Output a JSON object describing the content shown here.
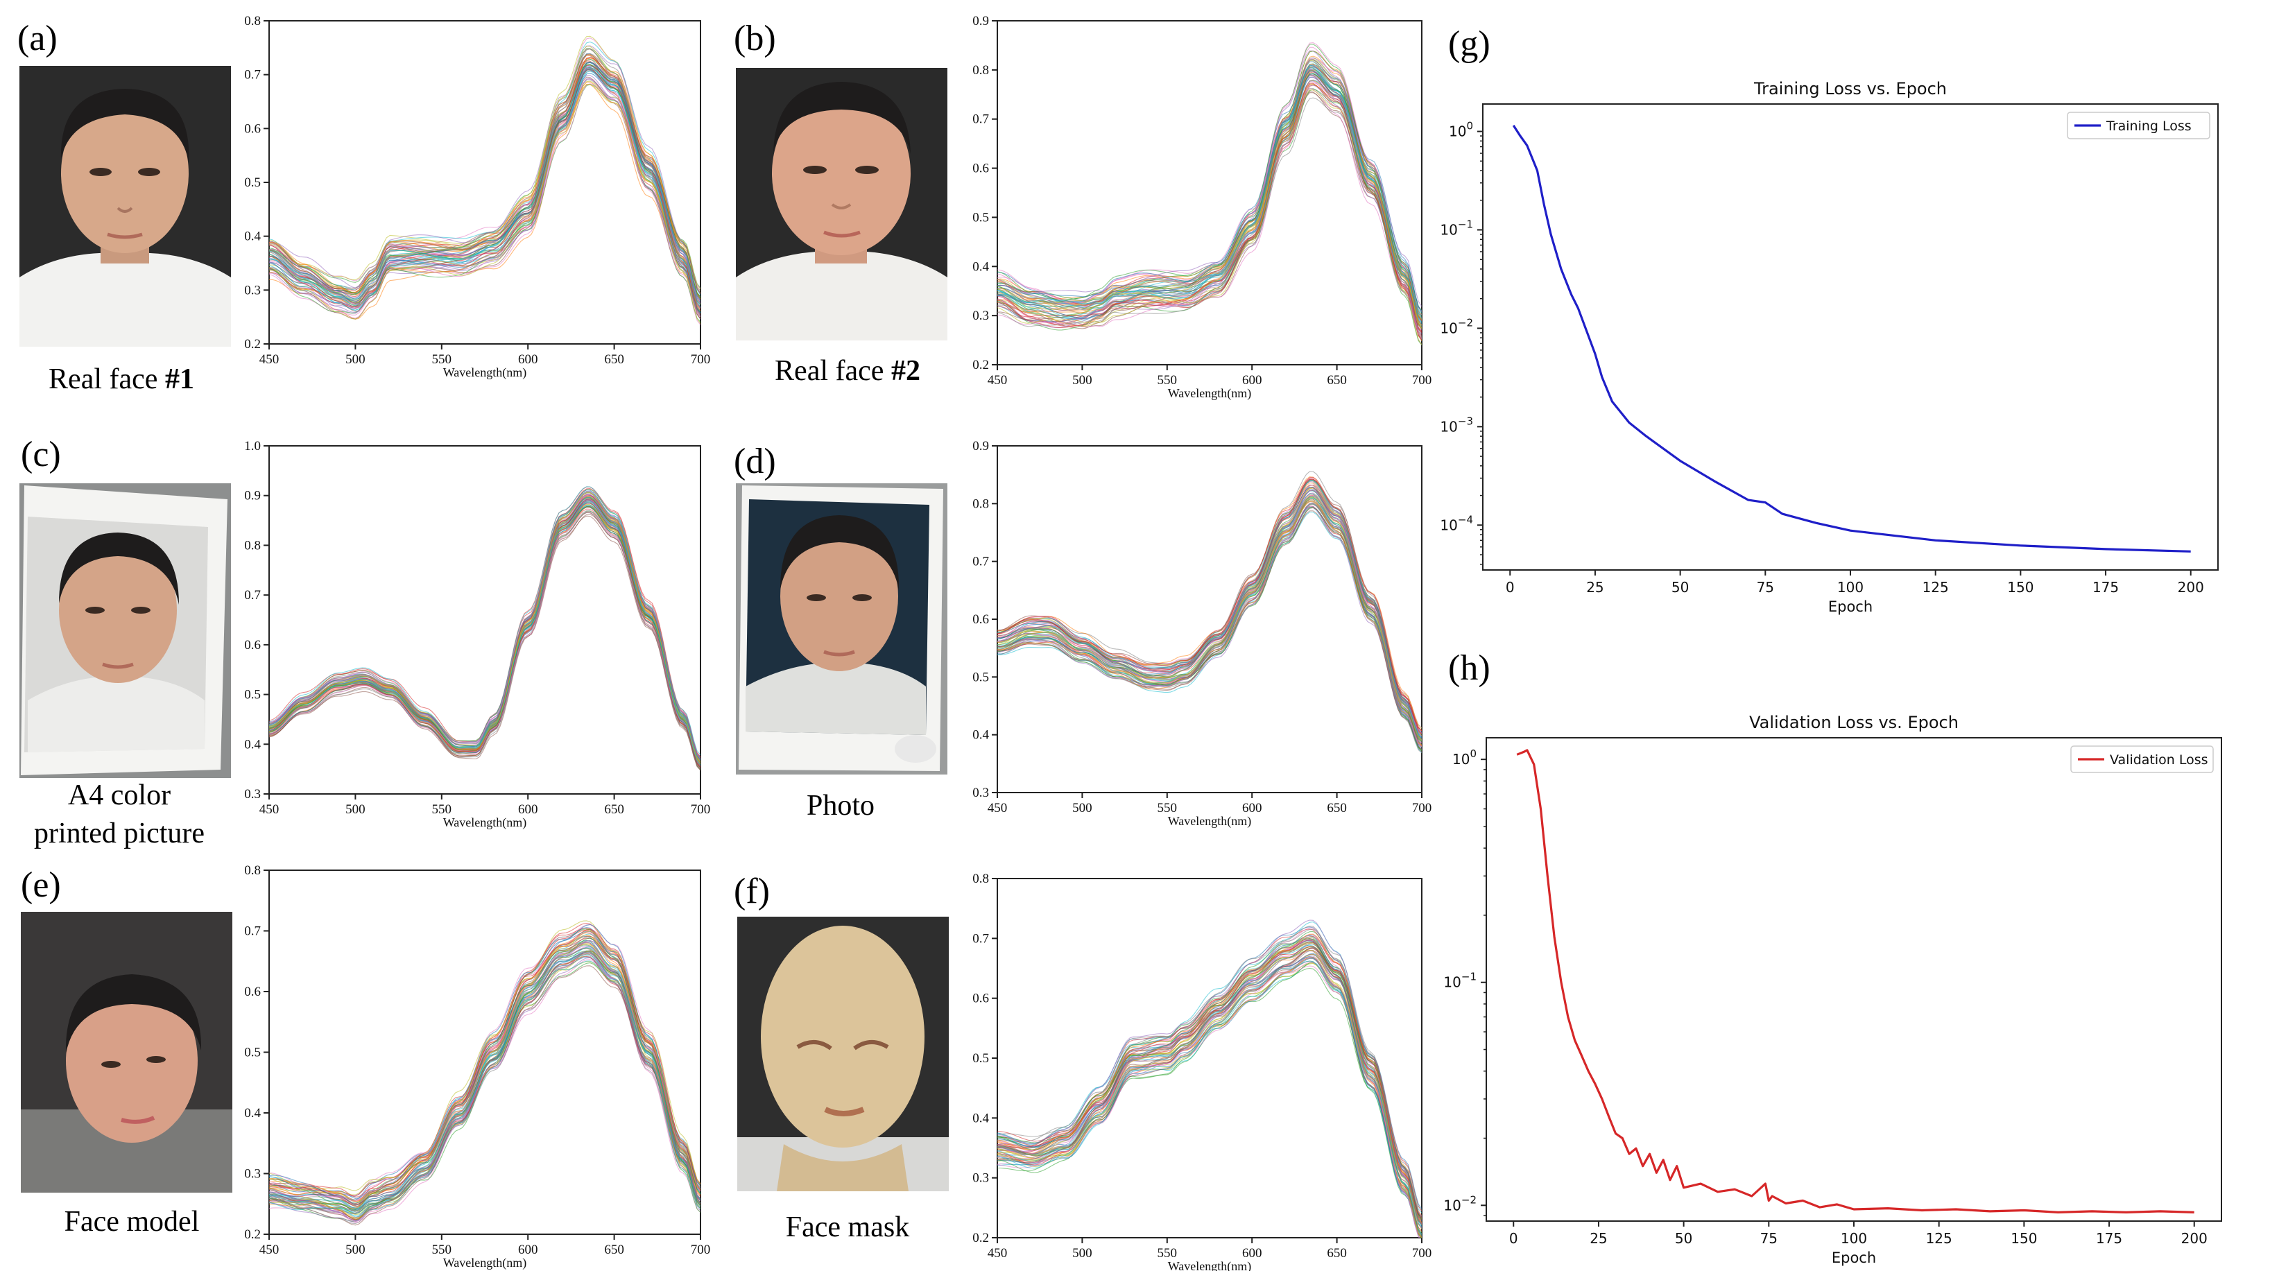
{
  "panels": {
    "a": {
      "tag": "(a)",
      "caption_main": "Real face ",
      "caption_bold": "#1"
    },
    "b": {
      "tag": "(b)",
      "caption_main": "Real face ",
      "caption_bold": "#2"
    },
    "c": {
      "tag": "(c)",
      "caption_line1": "A4 color",
      "caption_line2": "printed picture"
    },
    "d": {
      "tag": "(d)",
      "caption_line1": "Photo"
    },
    "e": {
      "tag": "(e)",
      "caption_line1": "Face model"
    },
    "f": {
      "tag": "(f)",
      "caption_line1": "Face mask"
    },
    "g": {
      "tag": "(g)"
    },
    "h": {
      "tag": "(h)"
    }
  },
  "colors": {
    "spectra_palette": [
      "#1f77b4",
      "#ff7f0e",
      "#2ca02c",
      "#d62728",
      "#9467bd",
      "#8c564b",
      "#e377c2",
      "#7f7f7f",
      "#bcbd22",
      "#17becf"
    ],
    "training_line": "#1f1fc8",
    "validation_line": "#d62728",
    "skin": "#d7a88a",
    "hair": "#1e1c1c",
    "shirt": "#f2f2f0",
    "background_dark": "#2a2a2a",
    "mask": "#dcc49a"
  },
  "chart_data": [
    {
      "id": "spectra-a",
      "type": "line",
      "xlabel": "Wavelength(nm)",
      "ylabel": "",
      "xlim": [
        450,
        700
      ],
      "ylim": [
        0.2,
        0.8
      ],
      "xticks": [
        450,
        500,
        550,
        600,
        650,
        700
      ],
      "yticks": [
        0.2,
        0.3,
        0.4,
        0.5,
        0.6,
        0.7,
        0.8
      ],
      "x": [
        450,
        470,
        490,
        500,
        510,
        520,
        540,
        560,
        580,
        600,
        620,
        635,
        650,
        670,
        690,
        700
      ],
      "mean": [
        0.36,
        0.32,
        0.29,
        0.28,
        0.31,
        0.36,
        0.36,
        0.36,
        0.38,
        0.44,
        0.62,
        0.72,
        0.68,
        0.52,
        0.36,
        0.27
      ],
      "spread": 0.025,
      "curve_count": 60
    },
    {
      "id": "spectra-b",
      "type": "line",
      "xlabel": "Wavelength(nm)",
      "ylabel": "",
      "xlim": [
        450,
        700
      ],
      "ylim": [
        0.2,
        0.9
      ],
      "xticks": [
        450,
        500,
        550,
        600,
        650,
        700
      ],
      "yticks": [
        0.2,
        0.3,
        0.4,
        0.5,
        0.6,
        0.7,
        0.8,
        0.9
      ],
      "x": [
        450,
        470,
        490,
        500,
        510,
        520,
        540,
        560,
        580,
        600,
        620,
        635,
        650,
        670,
        690,
        700
      ],
      "mean": [
        0.35,
        0.32,
        0.31,
        0.31,
        0.32,
        0.34,
        0.35,
        0.35,
        0.38,
        0.48,
        0.68,
        0.8,
        0.76,
        0.58,
        0.38,
        0.28
      ],
      "spread": 0.03,
      "curve_count": 60
    },
    {
      "id": "spectra-c",
      "type": "line",
      "xlabel": "Wavelength(nm)",
      "ylabel": "",
      "xlim": [
        450,
        700
      ],
      "ylim": [
        0.3,
        1.0
      ],
      "xticks": [
        450,
        500,
        550,
        600,
        650,
        700
      ],
      "yticks": [
        0.3,
        0.4,
        0.5,
        0.6,
        0.7,
        0.8,
        0.9,
        1.0
      ],
      "x": [
        450,
        470,
        490,
        505,
        520,
        540,
        560,
        570,
        580,
        600,
        620,
        635,
        650,
        670,
        690,
        700
      ],
      "mean": [
        0.43,
        0.48,
        0.52,
        0.53,
        0.51,
        0.45,
        0.39,
        0.39,
        0.44,
        0.64,
        0.84,
        0.89,
        0.84,
        0.66,
        0.45,
        0.36
      ],
      "spread": 0.01,
      "curve_count": 60
    },
    {
      "id": "spectra-d",
      "type": "line",
      "xlabel": "Wavelength(nm)",
      "ylabel": "",
      "xlim": [
        450,
        700
      ],
      "ylim": [
        0.3,
        0.9
      ],
      "xticks": [
        450,
        500,
        550,
        600,
        650,
        700
      ],
      "yticks": [
        0.3,
        0.4,
        0.5,
        0.6,
        0.7,
        0.8,
        0.9
      ],
      "x": [
        450,
        470,
        480,
        500,
        520,
        540,
        550,
        560,
        580,
        600,
        620,
        635,
        650,
        670,
        690,
        700
      ],
      "mean": [
        0.56,
        0.58,
        0.58,
        0.55,
        0.52,
        0.5,
        0.5,
        0.51,
        0.56,
        0.65,
        0.76,
        0.82,
        0.77,
        0.62,
        0.45,
        0.39
      ],
      "spread": 0.015,
      "curve_count": 60
    },
    {
      "id": "spectra-e",
      "type": "line",
      "xlabel": "Wavelength(nm)",
      "ylabel": "",
      "xlim": [
        450,
        700
      ],
      "ylim": [
        0.2,
        0.8
      ],
      "xticks": [
        450,
        500,
        550,
        600,
        650,
        700
      ],
      "yticks": [
        0.2,
        0.3,
        0.4,
        0.5,
        0.6,
        0.7,
        0.8
      ],
      "x": [
        450,
        470,
        490,
        500,
        510,
        520,
        540,
        560,
        580,
        600,
        620,
        635,
        650,
        670,
        690,
        700
      ],
      "mean": [
        0.27,
        0.26,
        0.25,
        0.24,
        0.26,
        0.27,
        0.31,
        0.4,
        0.5,
        0.6,
        0.66,
        0.68,
        0.64,
        0.5,
        0.33,
        0.26
      ],
      "spread": 0.02,
      "curve_count": 60
    },
    {
      "id": "spectra-f",
      "type": "line",
      "xlabel": "Wavelength(nm)",
      "ylabel": "",
      "xlim": [
        450,
        700
      ],
      "ylim": [
        0.2,
        0.8
      ],
      "xticks": [
        450,
        500,
        550,
        600,
        650,
        700
      ],
      "yticks": [
        0.2,
        0.3,
        0.4,
        0.5,
        0.6,
        0.7,
        0.8
      ],
      "x": [
        450,
        470,
        490,
        510,
        530,
        550,
        560,
        580,
        600,
        620,
        635,
        650,
        670,
        690,
        700
      ],
      "mean": [
        0.35,
        0.34,
        0.36,
        0.42,
        0.5,
        0.51,
        0.53,
        0.58,
        0.63,
        0.67,
        0.69,
        0.64,
        0.48,
        0.3,
        0.22
      ],
      "spread": 0.02,
      "curve_count": 60
    },
    {
      "id": "training-loss",
      "type": "line",
      "title": "Training Loss vs. Epoch",
      "xlabel": "Epoch",
      "ylabel": "",
      "xlim": [
        -8,
        208
      ],
      "ylim": [
        3.5e-05,
        1.9
      ],
      "yscale": "log",
      "xticks": [
        0,
        25,
        50,
        75,
        100,
        125,
        150,
        175,
        200
      ],
      "yticks": [
        1,
        0.1,
        0.01,
        0.001,
        0.0001
      ],
      "ytick_labels": [
        "10^0",
        "10^-1",
        "10^-2",
        "10^-3",
        "10^-4"
      ],
      "legend_position": "top-right",
      "series": [
        {
          "name": "Training Loss",
          "x": [
            1,
            3,
            5,
            8,
            10,
            12,
            15,
            18,
            20,
            25,
            27,
            30,
            35,
            40,
            50,
            60,
            70,
            75,
            80,
            90,
            100,
            125,
            150,
            175,
            200
          ],
          "y": [
            1.15,
            0.9,
            0.72,
            0.4,
            0.18,
            0.09,
            0.04,
            0.022,
            0.016,
            0.0055,
            0.0032,
            0.0018,
            0.0011,
            0.0008,
            0.00045,
            0.00028,
            0.00018,
            0.00017,
            0.00013,
            0.000105,
            8.8e-05,
            7e-05,
            6.2e-05,
            5.7e-05,
            5.4e-05
          ]
        }
      ]
    },
    {
      "id": "validation-loss",
      "type": "line",
      "title": "Validation Loss vs. Epoch",
      "xlabel": "Epoch",
      "ylabel": "",
      "xlim": [
        -8,
        208
      ],
      "ylim": [
        0.0085,
        1.25
      ],
      "yscale": "log",
      "xticks": [
        0,
        25,
        50,
        75,
        100,
        125,
        150,
        175,
        200
      ],
      "yticks": [
        1,
        0.1,
        0.01
      ],
      "ytick_labels": [
        "10^0",
        "10^-1",
        "10^-2"
      ],
      "legend_position": "top-right",
      "series": [
        {
          "name": "Validation Loss",
          "x": [
            1,
            3,
            4,
            6,
            8,
            10,
            12,
            14,
            16,
            18,
            20,
            22,
            24,
            26,
            28,
            30,
            32,
            34,
            36,
            38,
            40,
            42,
            44,
            46,
            48,
            50,
            55,
            60,
            65,
            70,
            74,
            75,
            76,
            80,
            85,
            90,
            95,
            100,
            110,
            120,
            130,
            140,
            150,
            160,
            170,
            180,
            190,
            200
          ],
          "y": [
            1.05,
            1.08,
            1.1,
            0.95,
            0.6,
            0.3,
            0.16,
            0.1,
            0.07,
            0.055,
            0.047,
            0.04,
            0.035,
            0.03,
            0.025,
            0.021,
            0.02,
            0.017,
            0.018,
            0.015,
            0.017,
            0.014,
            0.016,
            0.013,
            0.015,
            0.012,
            0.0125,
            0.0115,
            0.0118,
            0.011,
            0.0125,
            0.0105,
            0.011,
            0.0102,
            0.0105,
            0.0098,
            0.0101,
            0.0096,
            0.0097,
            0.0095,
            0.0096,
            0.0094,
            0.0095,
            0.0093,
            0.0094,
            0.0093,
            0.0094,
            0.0093
          ]
        }
      ]
    }
  ]
}
